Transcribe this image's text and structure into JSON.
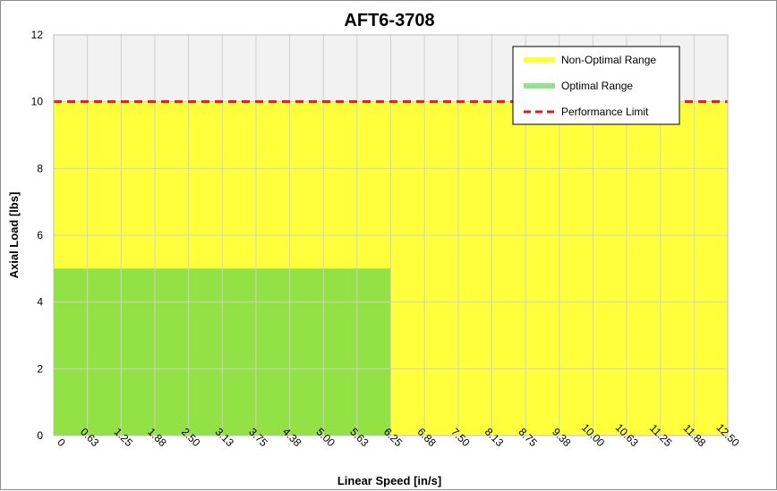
{
  "chart_data": {
    "type": "area",
    "title": "AFT6-3708",
    "xlabel": "Linear Speed [in/s]",
    "ylabel": "Axial Load [lbs]",
    "x_ticks": [
      "0",
      "0.63",
      "1.25",
      "1.88",
      "2.50",
      "3.13",
      "3.75",
      "4.38",
      "5.00",
      "5.63",
      "6.25",
      "6.88",
      "7.50",
      "8.13",
      "8.75",
      "9.38",
      "10.00",
      "10.63",
      "11.25",
      "11.88",
      "12.50"
    ],
    "y_ticks": [
      "0",
      "2",
      "4",
      "6",
      "8",
      "10",
      "12"
    ],
    "xlim": [
      0,
      12.5
    ],
    "ylim": [
      0,
      12
    ],
    "grid": true,
    "legend_position": "top-right",
    "series": [
      {
        "name": "Non-Optimal Range",
        "kind": "region",
        "x": [
          0,
          12.5
        ],
        "y": [
          10,
          10
        ],
        "color": "#ffff3c"
      },
      {
        "name": "Optimal Range",
        "kind": "region",
        "x": [
          0,
          6.25
        ],
        "y": [
          5,
          5
        ],
        "color": "#92e145"
      },
      {
        "name": "Performance Limit",
        "kind": "line",
        "style": "dashed",
        "x": [
          0,
          12.5
        ],
        "y": [
          10,
          10
        ],
        "color": "#e8171b"
      }
    ],
    "colors": {
      "plot_background": "#f2f2f2",
      "grid": "#d0d0d0",
      "legend_optimal_swatch": "#96e08e"
    }
  }
}
